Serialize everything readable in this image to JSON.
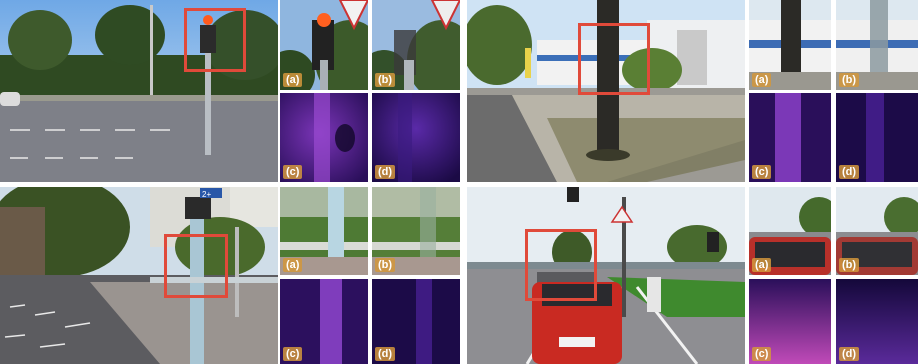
{
  "labels": {
    "a": "(a)",
    "b": "(b)",
    "c": "(c)",
    "d": "(d)"
  },
  "colors": {
    "highlight_box": "#e04a3a",
    "label_bg": "#d2963c"
  },
  "sign_text": "2+"
}
